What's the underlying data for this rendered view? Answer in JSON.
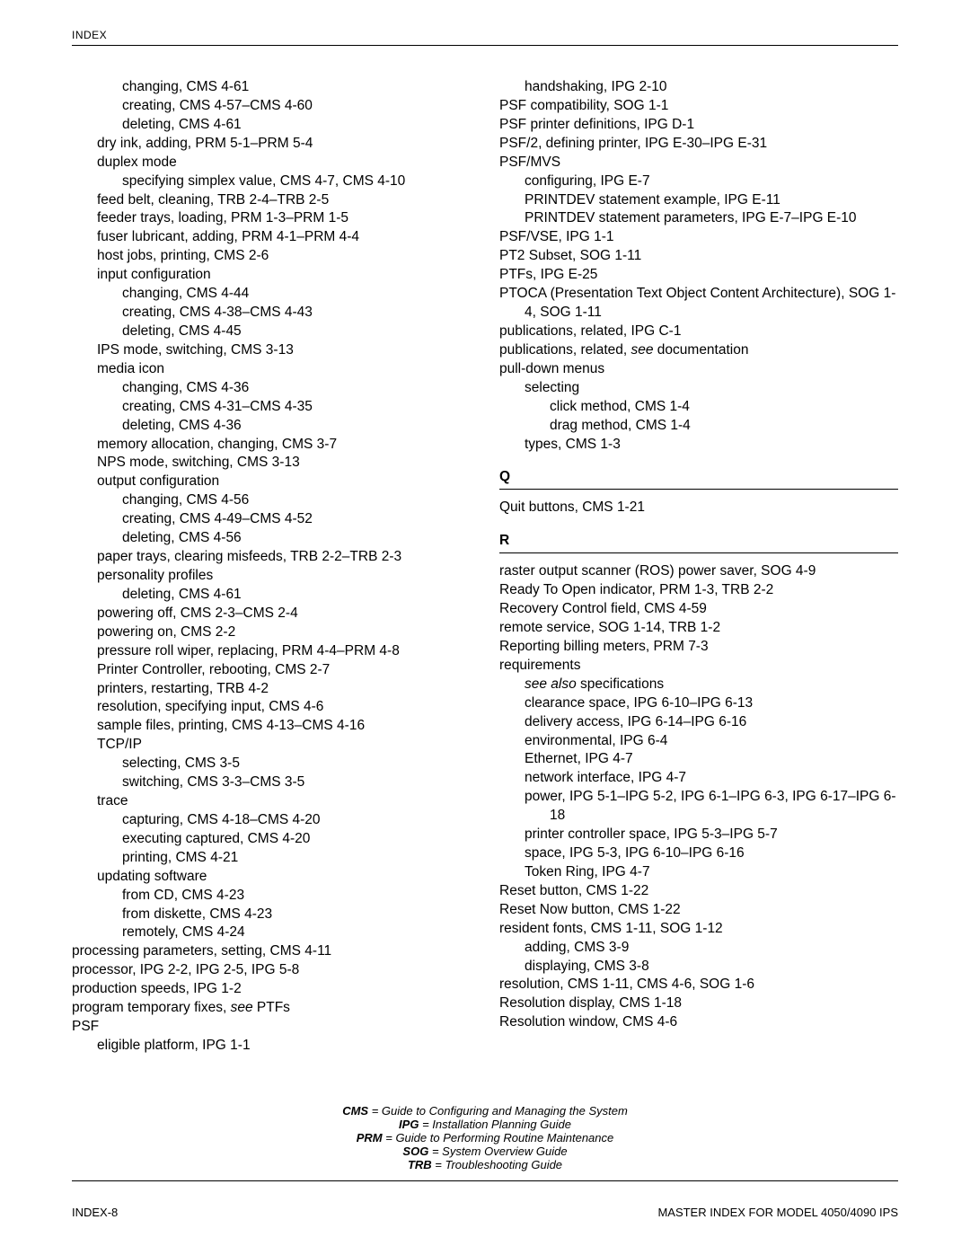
{
  "header": "INDEX",
  "legend": [
    {
      "abbr": "CMS",
      "def": " = Guide to Configuring and Managing the System"
    },
    {
      "abbr": "IPG",
      "def": " = Installation Planning Guide"
    },
    {
      "abbr": "PRM",
      "def": " = Guide to Performing Routine Maintenance"
    },
    {
      "abbr": "SOG",
      "def": " = System Overview Guide"
    },
    {
      "abbr": "TRB",
      "def": " = Troubleshooting Guide"
    }
  ],
  "footer": {
    "left": "INDEX-8",
    "right": "MASTER INDEX FOR MODEL 4050/4090 IPS"
  },
  "left": [
    {
      "lvl": 2,
      "t": "changing, CMS 4-61"
    },
    {
      "lvl": 2,
      "t": "creating, CMS 4-57–CMS 4-60"
    },
    {
      "lvl": 2,
      "t": "deleting, CMS 4-61"
    },
    {
      "lvl": 1,
      "t": "dry ink, adding, PRM 5-1–PRM 5-4"
    },
    {
      "lvl": 1,
      "t": "duplex mode"
    },
    {
      "lvl": 2,
      "t": "specifying simplex value, CMS 4-7, CMS 4-10"
    },
    {
      "lvl": 1,
      "t": "feed belt, cleaning, TRB 2-4–TRB 2-5"
    },
    {
      "lvl": 1,
      "t": "feeder trays, loading, PRM 1-3–PRM 1-5"
    },
    {
      "lvl": 1,
      "t": "fuser lubricant, adding, PRM 4-1–PRM 4-4"
    },
    {
      "lvl": 1,
      "t": "host jobs, printing, CMS 2-6"
    },
    {
      "lvl": 1,
      "t": "input configuration"
    },
    {
      "lvl": 2,
      "t": "changing, CMS 4-44"
    },
    {
      "lvl": 2,
      "t": "creating, CMS 4-38–CMS 4-43"
    },
    {
      "lvl": 2,
      "t": "deleting, CMS 4-45"
    },
    {
      "lvl": 1,
      "t": "IPS mode, switching, CMS 3-13"
    },
    {
      "lvl": 1,
      "t": "media icon"
    },
    {
      "lvl": 2,
      "t": "changing, CMS 4-36"
    },
    {
      "lvl": 2,
      "t": "creating, CMS 4-31–CMS 4-35"
    },
    {
      "lvl": 2,
      "t": "deleting, CMS 4-36"
    },
    {
      "lvl": 1,
      "t": "memory allocation, changing, CMS 3-7"
    },
    {
      "lvl": 1,
      "t": "NPS mode, switching, CMS 3-13"
    },
    {
      "lvl": 1,
      "t": "output configuration"
    },
    {
      "lvl": 2,
      "t": "changing, CMS 4-56"
    },
    {
      "lvl": 2,
      "t": "creating, CMS 4-49–CMS 4-52"
    },
    {
      "lvl": 2,
      "t": "deleting, CMS 4-56"
    },
    {
      "lvl": 1,
      "t": "paper trays, clearing misfeeds, TRB 2-2–TRB 2-3"
    },
    {
      "lvl": 1,
      "t": "personality profiles"
    },
    {
      "lvl": 2,
      "t": "deleting, CMS 4-61"
    },
    {
      "lvl": 1,
      "t": "powering off, CMS 2-3–CMS 2-4"
    },
    {
      "lvl": 1,
      "t": "powering on, CMS 2-2"
    },
    {
      "lvl": 1,
      "t": "pressure roll wiper, replacing, PRM 4-4–PRM 4-8"
    },
    {
      "lvl": 1,
      "t": "Printer Controller, rebooting, CMS 2-7"
    },
    {
      "lvl": 1,
      "t": "printers, restarting, TRB 4-2"
    },
    {
      "lvl": 1,
      "t": "resolution, specifying input, CMS 4-6"
    },
    {
      "lvl": 1,
      "t": "sample files, printing, CMS 4-13–CMS 4-16"
    },
    {
      "lvl": 1,
      "t": "TCP/IP"
    },
    {
      "lvl": 2,
      "t": "selecting, CMS 3-5"
    },
    {
      "lvl": 2,
      "t": "switching, CMS 3-3–CMS 3-5"
    },
    {
      "lvl": 1,
      "t": "trace"
    },
    {
      "lvl": 2,
      "t": "capturing, CMS 4-18–CMS 4-20"
    },
    {
      "lvl": 2,
      "t": "executing captured, CMS 4-20"
    },
    {
      "lvl": 2,
      "t": "printing, CMS 4-21"
    },
    {
      "lvl": 1,
      "t": "updating software"
    },
    {
      "lvl": 2,
      "t": "from CD, CMS 4-23"
    },
    {
      "lvl": 2,
      "t": "from diskette, CMS 4-23"
    },
    {
      "lvl": 2,
      "t": "remotely, CMS 4-24"
    },
    {
      "lvl": 0,
      "t": "processing parameters, setting, CMS 4-11"
    },
    {
      "lvl": 0,
      "t": "processor, IPG 2-2, IPG 2-5, IPG 5-8"
    },
    {
      "lvl": 0,
      "t": "production speeds, IPG 1-2"
    },
    {
      "lvl": 0,
      "see": true,
      "pre": "program temporary fixes, ",
      "em": "see",
      "post": " PTFs"
    },
    {
      "lvl": 0,
      "t": "PSF"
    },
    {
      "lvl": 1,
      "t": "eligible platform, IPG 1-1"
    }
  ],
  "right": [
    {
      "lvl": 1,
      "t": "handshaking, IPG 2-10"
    },
    {
      "lvl": 0,
      "t": "PSF compatibility, SOG 1-1"
    },
    {
      "lvl": 0,
      "t": "PSF printer definitions, IPG D-1"
    },
    {
      "lvl": 0,
      "t": "PSF/2, defining printer, IPG E-30–IPG E-31"
    },
    {
      "lvl": 0,
      "t": "PSF/MVS"
    },
    {
      "lvl": 1,
      "t": "configuring, IPG E-7"
    },
    {
      "lvl": 1,
      "t": "PRINTDEV statement example, IPG E-11"
    },
    {
      "lvl": 1,
      "t": "PRINTDEV statement parameters, IPG E-7–IPG E-10"
    },
    {
      "lvl": 0,
      "t": "PSF/VSE, IPG 1-1"
    },
    {
      "lvl": 0,
      "t": "PT2 Subset, SOG 1-11"
    },
    {
      "lvl": 0,
      "t": "PTFs, IPG E-25"
    },
    {
      "lvl": 0,
      "t": "PTOCA (Presentation Text Object Content Architecture), SOG 1-4, SOG 1-11"
    },
    {
      "lvl": 0,
      "t": "publications, related, IPG C-1"
    },
    {
      "lvl": 0,
      "see": true,
      "pre": "publications, related, ",
      "em": "see",
      "post": " documentation"
    },
    {
      "lvl": 0,
      "t": "pull-down menus"
    },
    {
      "lvl": 1,
      "t": "selecting"
    },
    {
      "lvl": 2,
      "t": "click method, CMS 1-4"
    },
    {
      "lvl": 2,
      "t": "drag method, CMS 1-4"
    },
    {
      "lvl": 1,
      "t": "types, CMS 1-3"
    },
    {
      "section": "Q"
    },
    {
      "lvl": 0,
      "t": "Quit buttons, CMS 1-21"
    },
    {
      "section": "R"
    },
    {
      "lvl": 0,
      "t": "raster output scanner (ROS) power saver, SOG 4-9"
    },
    {
      "lvl": 0,
      "t": "Ready To Open indicator, PRM 1-3, TRB 2-2"
    },
    {
      "lvl": 0,
      "t": "Recovery Control field, CMS 4-59"
    },
    {
      "lvl": 0,
      "t": "remote service, SOG 1-14, TRB 1-2"
    },
    {
      "lvl": 0,
      "t": "Reporting billing meters, PRM 7-3"
    },
    {
      "lvl": 0,
      "t": "requirements"
    },
    {
      "lvl": 1,
      "see": true,
      "pre": "",
      "em": "see also",
      "post": " specifications"
    },
    {
      "lvl": 1,
      "t": "clearance space, IPG 6-10–IPG 6-13"
    },
    {
      "lvl": 1,
      "t": "delivery access, IPG 6-14–IPG 6-16"
    },
    {
      "lvl": 1,
      "t": "environmental, IPG 6-4"
    },
    {
      "lvl": 1,
      "t": "Ethernet, IPG 4-7"
    },
    {
      "lvl": 1,
      "t": "network interface, IPG 4-7"
    },
    {
      "lvl": 1,
      "t": "power, IPG 5-1–IPG 5-2, IPG 6-1–IPG 6-3, IPG 6-17–IPG 6-18"
    },
    {
      "lvl": 1,
      "t": "printer controller space, IPG 5-3–IPG 5-7"
    },
    {
      "lvl": 1,
      "t": "space, IPG 5-3, IPG 6-10–IPG 6-16"
    },
    {
      "lvl": 1,
      "t": "Token Ring, IPG 4-7"
    },
    {
      "lvl": 0,
      "t": "Reset button, CMS 1-22"
    },
    {
      "lvl": 0,
      "t": "Reset Now button, CMS 1-22"
    },
    {
      "lvl": 0,
      "t": "resident fonts, CMS 1-11, SOG 1-12"
    },
    {
      "lvl": 1,
      "t": "adding, CMS 3-9"
    },
    {
      "lvl": 1,
      "t": "displaying, CMS 3-8"
    },
    {
      "lvl": 0,
      "t": "resolution, CMS 1-11, CMS 4-6, SOG 1-6"
    },
    {
      "lvl": 0,
      "t": "Resolution display, CMS 1-18"
    },
    {
      "lvl": 0,
      "t": "Resolution window, CMS 4-6"
    }
  ]
}
